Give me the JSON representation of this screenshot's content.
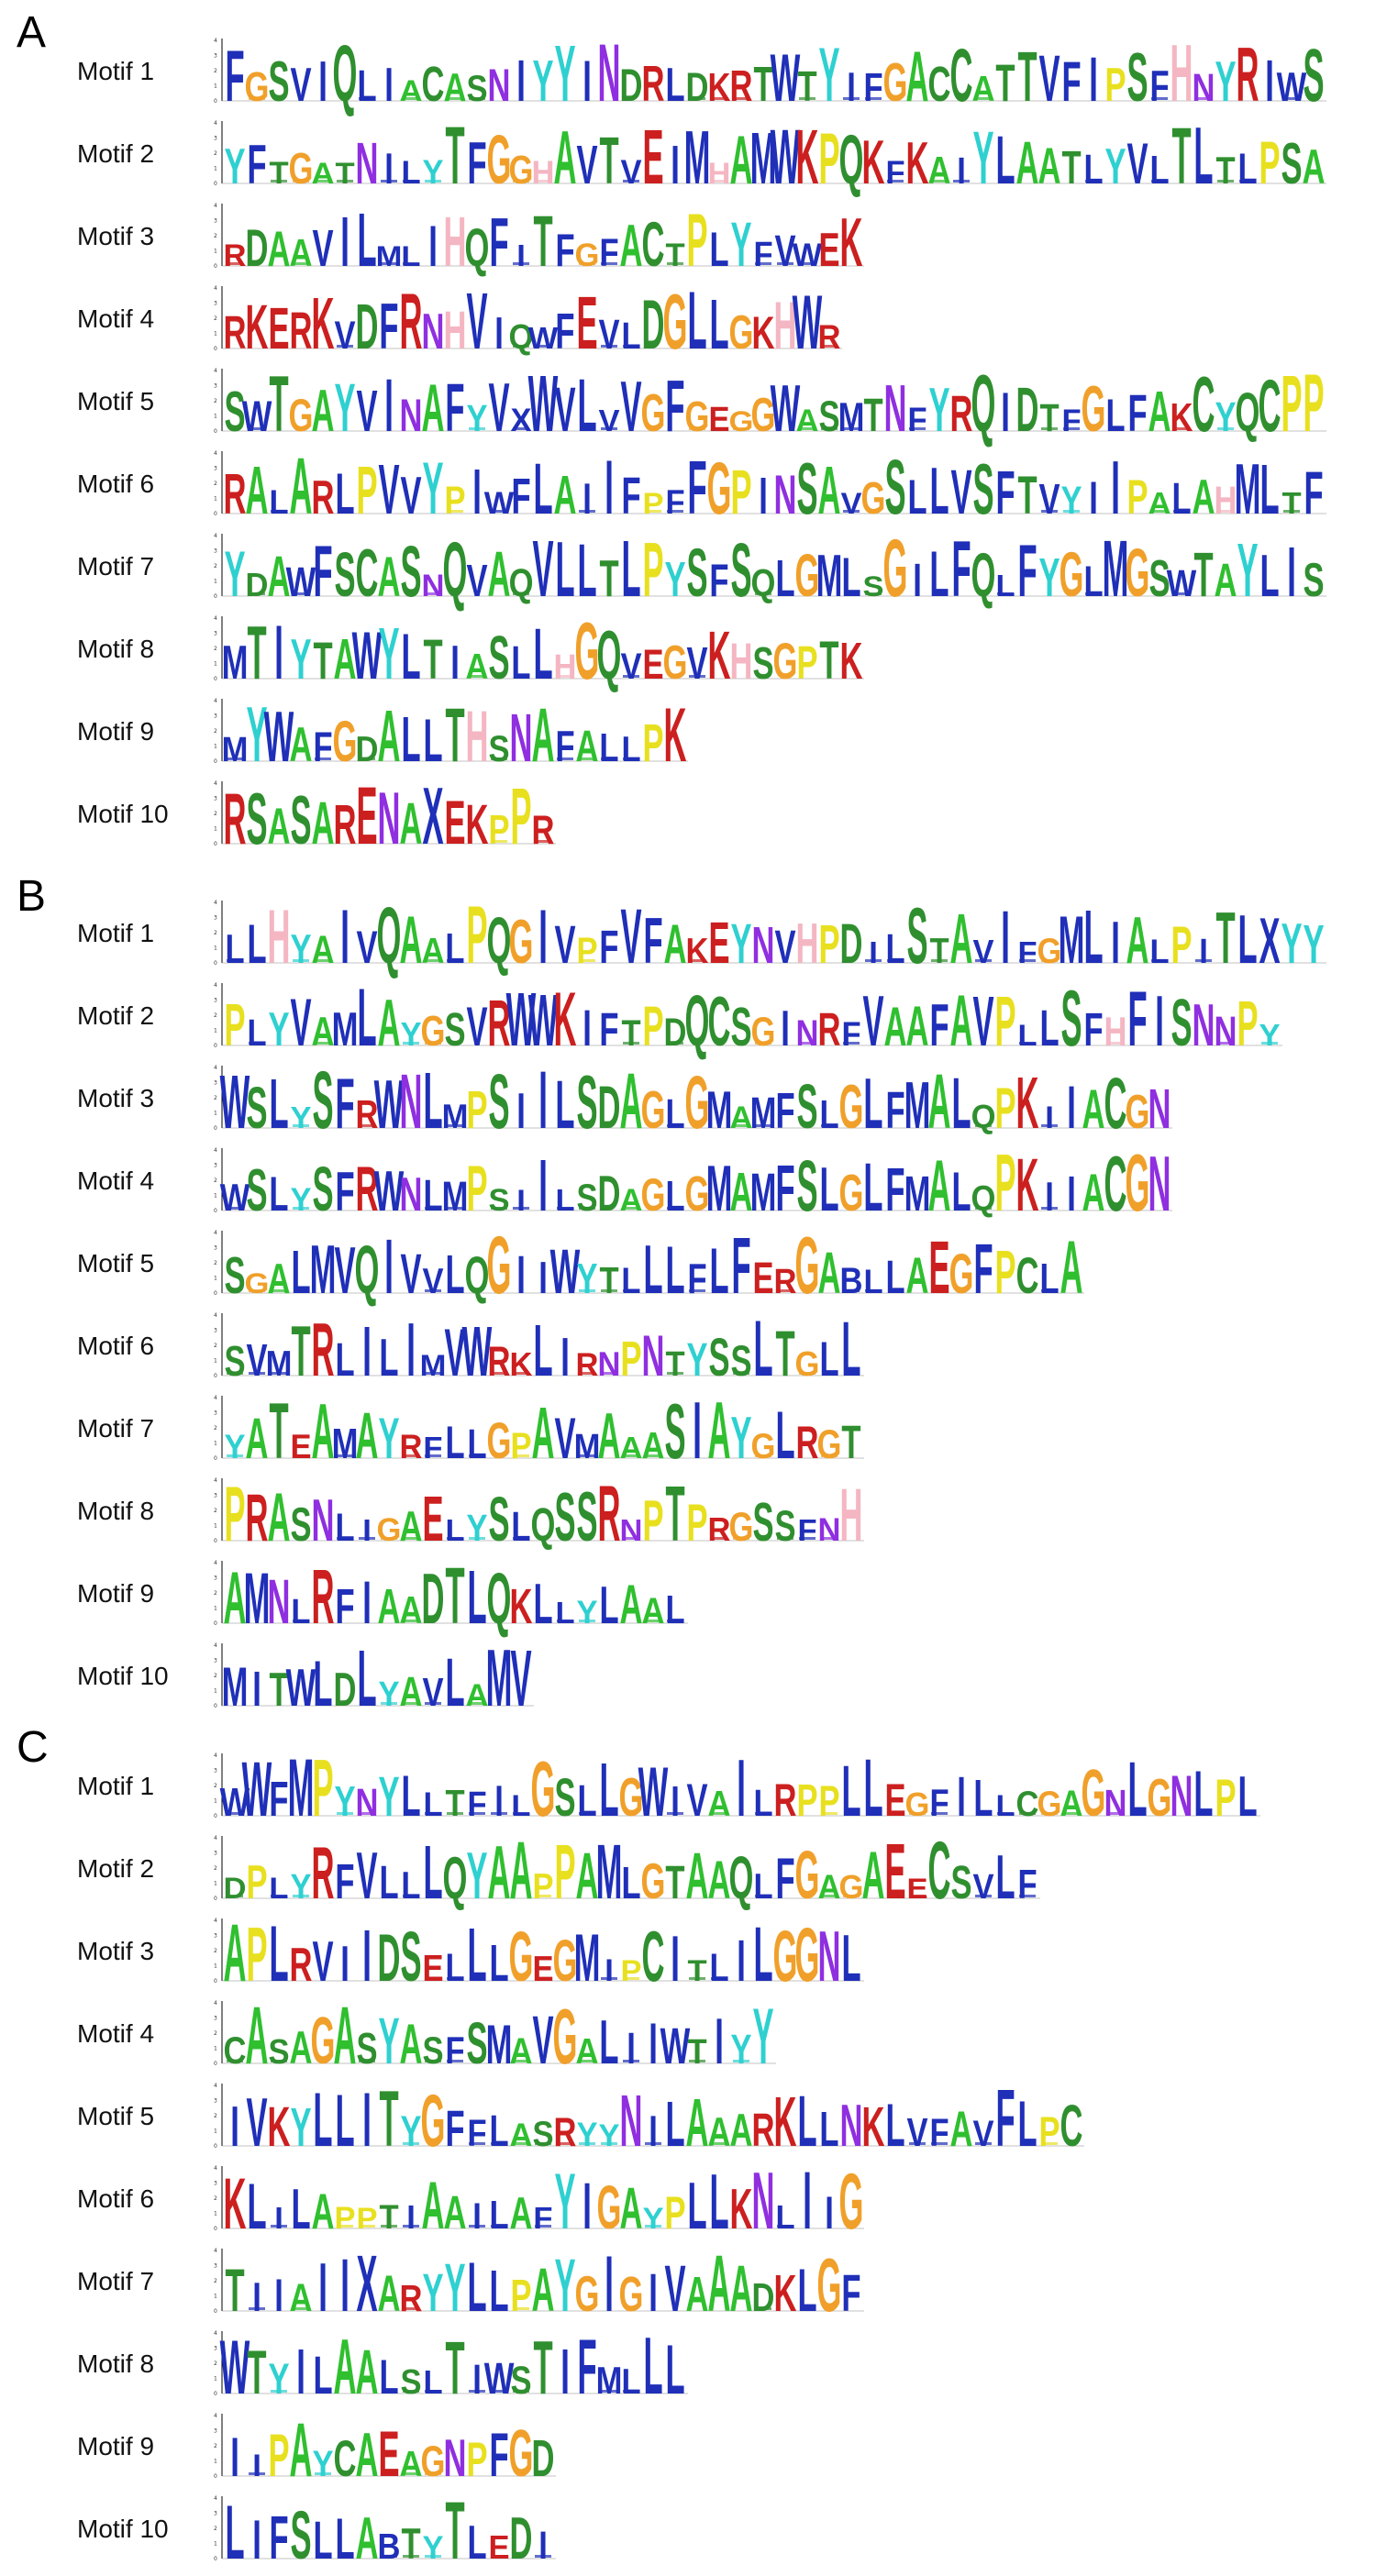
{
  "colors": {
    "A": "#2fbf2f",
    "C": "#2f8f2f",
    "D": "#2f8f2f",
    "E": "#cc1f1f",
    "F": "#1f2fb8",
    "G": "#f0a02a",
    "H": "#f4b6c2",
    "I": "#1f2fb8",
    "K": "#cc1f1f",
    "L": "#1f2fb8",
    "M": "#1f2fb8",
    "N": "#8f2fe0",
    "P": "#e8e01f",
    "Q": "#2f8f2f",
    "R": "#cc1f1f",
    "S": "#2f8f2f",
    "T": "#2f8f2f",
    "V": "#1f2fb8",
    "W": "#1f2fb8",
    "Y": "#2fd0d0"
  },
  "axis_ticks": [
    "0",
    "1",
    "2",
    "3",
    "4"
  ],
  "panels": [
    {
      "letter": "A",
      "motifs": [
        {
          "label": "Motif 1",
          "seq": "FGSVIQLIACASNIYYINDRLDKRTWTYIFGACCATTVFIPSFHNYRIWS"
        },
        {
          "label": "Motif 2",
          "seq": "YFTGATNILYTFGGHAVTVEIMHAMWKPQKFKAIYLAATLYVLTLTLPSA"
        },
        {
          "label": "Motif 3",
          "seq": "RDAAVILMLIHQFITFGFACTPLYFVWEK"
        },
        {
          "label": "Motif 4",
          "seq": "RKERKVDFRNHVIQWFEVLDGLLGKHWR"
        },
        {
          "label": "Motif 5",
          "seq": "SWTGAYVINAFYVXWVLVVGFGEGGWASMTNFYRQIDTFGLFAKCYQCPP"
        },
        {
          "label": "Motif 6",
          "seq": "RALARLPVVYPIWFLAIIFPFFGPINSAVGSLLVSFTVYIIPALAHMLTF"
        },
        {
          "label": "Motif 7",
          "seq": "YDAWFSCASNQVAQVLLTLPYSFSQLGMLSGILFQLFYGLMGSWTAYLIS"
        },
        {
          "label": "Motif 8",
          "seq": "MTIYTAWYLTIASLLHGQVEGVKHSGPTK"
        },
        {
          "label": "Motif 9",
          "seq": "MYWAFGDALLTHSNAFALLPK"
        },
        {
          "label": "Motif 10",
          "seq": "RSASARENAXEKPPR"
        }
      ]
    },
    {
      "letter": "B",
      "motifs": [
        {
          "label": "Motif 1",
          "seq": "LLHYAIVQAALPQGIVPFVFAKEYNVHPDILSTAVIFGMLIALPITLXYY"
        },
        {
          "label": "Motif 2",
          "seq": "PLYVAMLAYGSVRWWKIFTPDQCSGINRFVAAFAVPLLSFHFISNNPY"
        },
        {
          "label": "Motif 3",
          "seq": "WSLYSFRWNLMPSIILSDAGLGMAMFSLGLFMALQPKIIACGN"
        },
        {
          "label": "Motif 4",
          "seq": "WSLYSFRWNLMPSIILSDAGLGMAMFSLGLFMALQPKIIACGN"
        },
        {
          "label": "Motif 5",
          "seq": "SGALMVQIVVLQGIIWYTLLLFLFERGABLLAEGFPCLA"
        },
        {
          "label": "Motif 6",
          "seq": "SVMTRLILIMVWRKLIRNPNTYSSLTGLL"
        },
        {
          "label": "Motif 7",
          "seq": "YATEAMAYRFLLGPAVMAAASIAYGLRGT"
        },
        {
          "label": "Motif 8",
          "seq": "PRASNLIGAELYSLQSSRNPTPRGSSFNH"
        },
        {
          "label": "Motif 9",
          "seq": "AMNLRFIAADTLQKLLYLAAL"
        },
        {
          "label": "Motif 10",
          "seq": "MITWLDLYAVLAMV"
        }
      ]
    },
    {
      "letter": "C",
      "motifs": [
        {
          "label": "Motif 1",
          "seq": "WWFMPYNYLLTFILGSLLGWIVAILRPPLLEGFILLCGAGNLGNLPL"
        },
        {
          "label": "Motif 2",
          "seq": "DPLYRFVLLLQYAAPPAMLGTAAQLFGAGAEECSVLF"
        },
        {
          "label": "Motif 3",
          "seq": "APLRVIIDSELLLGEGMIPCITLILGGNL"
        },
        {
          "label": "Motif 4",
          "seq": "CASAGASYASFSMAVGALIIWTIYY"
        },
        {
          "label": "Motif 5",
          "seq": "IVKYLLITYGFFLASRYYNILAAARKLLNKLVFAVFLPC"
        },
        {
          "label": "Motif 6",
          "seq": "KLILAPPTIAAILAFYIGAYPLLKNLIIG"
        },
        {
          "label": "Motif 7",
          "seq": "TIIAIIXARYYLLPAYGIGIVAAADKLGF"
        },
        {
          "label": "Motif 8",
          "seq": "WTYILAALSLTIWSTIFMLLL"
        },
        {
          "label": "Motif 9",
          "seq": "IIPAYCAEAGNPFGD"
        },
        {
          "label": "Motif 10",
          "seq": "LIFSLLABTYTLEDI"
        }
      ]
    }
  ]
}
